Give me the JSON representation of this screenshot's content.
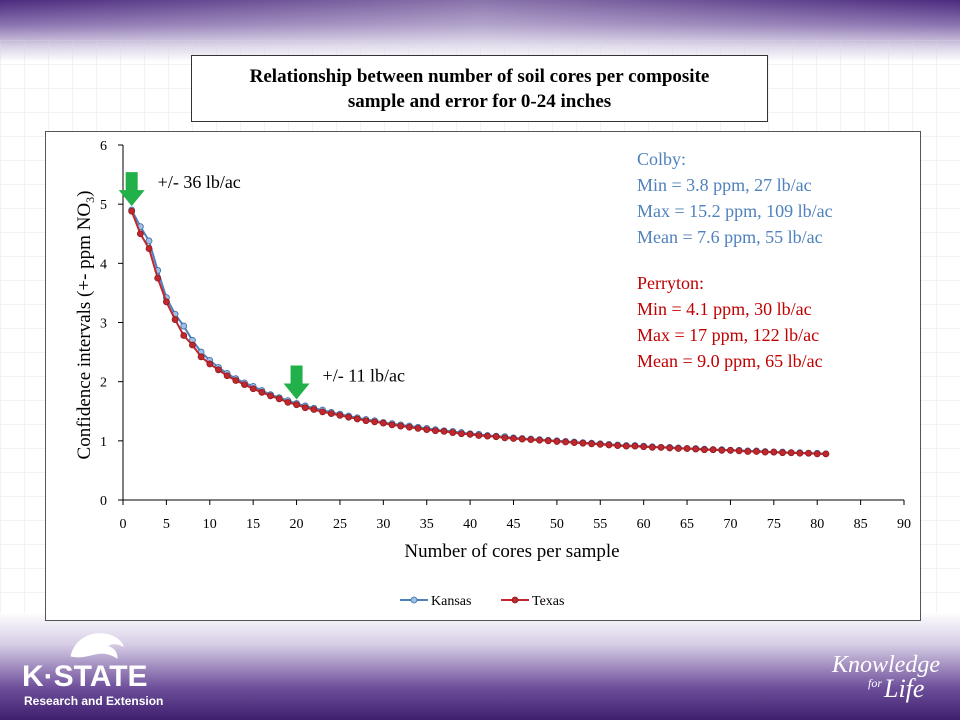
{
  "page": {
    "title": "Relationship between number of soil cores per composite sample and error for 0-24 inches",
    "logo": {
      "word": "K·STATE",
      "sub": "Research and Extension"
    },
    "tagline": {
      "line1": "Knowledge",
      "line2": "for",
      "line3": "Life"
    }
  },
  "chart_data": {
    "type": "line",
    "title": "Relationship between number of soil cores per composite sample and error for 0-24 inches",
    "xlabel": "Number of cores per sample",
    "ylabel": "Confidence intervals (+- ppm NO3)",
    "xlim": [
      0,
      90
    ],
    "ylim": [
      0,
      6
    ],
    "xticks": [
      0,
      5,
      10,
      15,
      20,
      25,
      30,
      35,
      40,
      45,
      50,
      55,
      60,
      65,
      70,
      75,
      80,
      85,
      90
    ],
    "yticks": [
      0,
      1,
      2,
      3,
      4,
      5,
      6
    ],
    "grid": false,
    "legend": {
      "position": "bottom",
      "entries": [
        "Kansas",
        "Texas"
      ]
    },
    "colors": {
      "Kansas": "#4f81bd",
      "Texas": "#c0282d",
      "arrow": "#22b04a",
      "colby_text": "#4f81bd",
      "perryton_text": "#c00000"
    },
    "series": [
      {
        "name": "Kansas",
        "x": [
          1,
          2,
          3,
          4,
          5,
          6,
          7,
          8,
          9,
          10,
          11,
          12,
          13,
          14,
          15,
          16,
          17,
          18,
          19,
          20,
          21,
          22,
          23,
          24,
          25,
          26,
          27,
          28,
          29,
          30,
          31,
          32,
          33,
          34,
          35,
          36,
          37,
          38,
          39,
          40,
          41,
          42,
          43,
          44,
          45,
          46,
          47,
          48,
          49,
          50,
          51,
          52,
          53,
          54,
          55,
          56,
          57,
          58,
          59,
          60,
          61,
          62,
          63,
          64,
          65,
          66,
          67,
          68,
          69,
          70,
          71,
          72,
          73,
          74,
          75,
          76,
          77,
          78,
          79,
          80,
          81
        ],
        "values": [
          4.9,
          4.62,
          4.38,
          3.88,
          3.42,
          3.14,
          2.94,
          2.7,
          2.5,
          2.36,
          2.24,
          2.14,
          2.05,
          1.98,
          1.92,
          1.85,
          1.78,
          1.73,
          1.68,
          1.63,
          1.59,
          1.55,
          1.52,
          1.48,
          1.45,
          1.42,
          1.39,
          1.36,
          1.34,
          1.31,
          1.29,
          1.27,
          1.25,
          1.23,
          1.21,
          1.19,
          1.17,
          1.16,
          1.14,
          1.12,
          1.11,
          1.09,
          1.08,
          1.07,
          1.05,
          1.04,
          1.03,
          1.02,
          1.01,
          1.0,
          0.99,
          0.98,
          0.97,
          0.96,
          0.95,
          0.94,
          0.93,
          0.92,
          0.92,
          0.91,
          0.9,
          0.89,
          0.89,
          0.88,
          0.87,
          0.87,
          0.86,
          0.85,
          0.85,
          0.84,
          0.84,
          0.83,
          0.83,
          0.82,
          0.81,
          0.81,
          0.8,
          0.8,
          0.79,
          0.79,
          0.78
        ]
      },
      {
        "name": "Texas",
        "x": [
          1,
          2,
          3,
          4,
          5,
          6,
          7,
          8,
          9,
          10,
          11,
          12,
          13,
          14,
          15,
          16,
          17,
          18,
          19,
          20,
          21,
          22,
          23,
          24,
          25,
          26,
          27,
          28,
          29,
          30,
          31,
          32,
          33,
          34,
          35,
          36,
          37,
          38,
          39,
          40,
          41,
          42,
          43,
          44,
          45,
          46,
          47,
          48,
          49,
          50,
          51,
          52,
          53,
          54,
          55,
          56,
          57,
          58,
          59,
          60,
          61,
          62,
          63,
          64,
          65,
          66,
          67,
          68,
          69,
          70,
          71,
          72,
          73,
          74,
          75,
          76,
          77,
          78,
          79,
          80,
          81
        ],
        "values": [
          4.88,
          4.5,
          4.25,
          3.75,
          3.35,
          3.05,
          2.78,
          2.62,
          2.42,
          2.3,
          2.2,
          2.1,
          2.02,
          1.95,
          1.88,
          1.82,
          1.76,
          1.71,
          1.65,
          1.61,
          1.56,
          1.53,
          1.49,
          1.46,
          1.43,
          1.4,
          1.37,
          1.34,
          1.32,
          1.3,
          1.27,
          1.25,
          1.23,
          1.21,
          1.19,
          1.17,
          1.16,
          1.14,
          1.12,
          1.11,
          1.09,
          1.08,
          1.07,
          1.05,
          1.04,
          1.03,
          1.02,
          1.01,
          1.0,
          0.99,
          0.98,
          0.97,
          0.96,
          0.95,
          0.94,
          0.93,
          0.92,
          0.91,
          0.91,
          0.9,
          0.89,
          0.89,
          0.88,
          0.87,
          0.87,
          0.86,
          0.85,
          0.85,
          0.84,
          0.84,
          0.83,
          0.82,
          0.82,
          0.81,
          0.81,
          0.8,
          0.8,
          0.79,
          0.79,
          0.78,
          0.78
        ]
      }
    ],
    "annotations": [
      {
        "text": "+/- 36 lb/ac",
        "x": 1,
        "y": 4.9
      },
      {
        "text": "+/- 11 lb/ac",
        "x": 20,
        "y": 1.63
      }
    ],
    "info_blocks": [
      {
        "name": "colby",
        "lines": [
          "Colby:",
          "Min = 3.8 ppm, 27 lb/ac",
          "Max = 15.2 ppm, 109 lb/ac",
          "Mean = 7.6 ppm, 55 lb/ac"
        ]
      },
      {
        "name": "perryton",
        "lines": [
          "Perryton:",
          "Min = 4.1 ppm, 30 lb/ac",
          "Max = 17 ppm, 122 lb/ac",
          "Mean = 9.0 ppm, 65 lb/ac"
        ]
      }
    ]
  }
}
